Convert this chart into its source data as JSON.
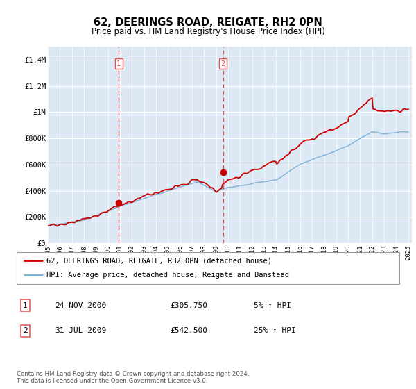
{
  "title": "62, DEERINGS ROAD, REIGATE, RH2 0PN",
  "subtitle": "Price paid vs. HM Land Registry's House Price Index (HPI)",
  "legend_line1": "62, DEERINGS ROAD, REIGATE, RH2 0PN (detached house)",
  "legend_line2": "HPI: Average price, detached house, Reigate and Banstead",
  "annotation1_date": "24-NOV-2000",
  "annotation1_price": "£305,750",
  "annotation1_hpi": "5% ↑ HPI",
  "annotation2_date": "31-JUL-2009",
  "annotation2_price": "£542,500",
  "annotation2_hpi": "25% ↑ HPI",
  "footer": "Contains HM Land Registry data © Crown copyright and database right 2024.\nThis data is licensed under the Open Government Licence v3.0.",
  "red_color": "#cc0000",
  "blue_color": "#7bafd4",
  "vline_color": "#e05050",
  "shade_color": "#dde8f4",
  "plot_bg": "#dce8f4",
  "ylim": [
    0,
    1500000
  ],
  "yticks": [
    0,
    200000,
    400000,
    600000,
    800000,
    1000000,
    1200000,
    1400000
  ],
  "ytick_labels": [
    "£0",
    "£200K",
    "£400K",
    "£600K",
    "£800K",
    "£1M",
    "£1.2M",
    "£1.4M"
  ],
  "sale1_year": 2000.9,
  "sale1_price": 305750,
  "sale2_year": 2009.58,
  "sale2_price": 542500
}
